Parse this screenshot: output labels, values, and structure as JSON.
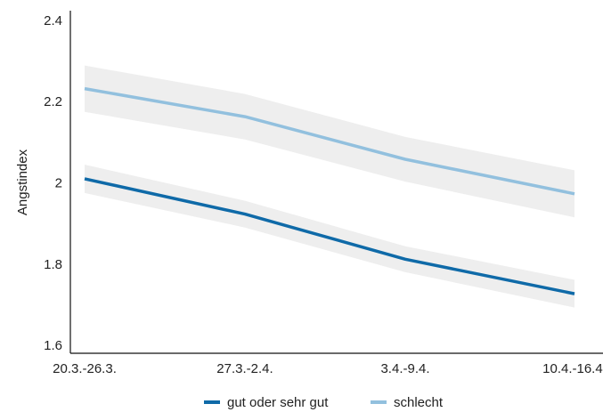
{
  "chart_data": {
    "type": "line",
    "categories": [
      "20.3.-26.3.",
      "27.3.-2.4.",
      "3.4.-9.4.",
      "10.4.-16.4."
    ],
    "ylabel": "Angstindex",
    "ylim": [
      1.58,
      2.42
    ],
    "yticks": [
      "1.6",
      "1.8",
      "2",
      "2.2",
      "2.4"
    ],
    "ytick_values": [
      1.6,
      1.8,
      2.0,
      2.2,
      2.4
    ],
    "grid": false,
    "legend_position": "bottom",
    "series": [
      {
        "name": "gut oder sehr gut",
        "color": "#0f6aa8",
        "values": [
          2.01,
          1.923,
          1.812,
          1.727
        ],
        "ci_low": [
          1.975,
          1.89,
          1.78,
          1.693
        ],
        "ci_high": [
          2.045,
          1.956,
          1.844,
          1.761
        ]
      },
      {
        "name": "schlecht",
        "color": "#92c0de",
        "values": [
          2.232,
          2.163,
          2.058,
          1.973
        ],
        "ci_low": [
          2.175,
          2.107,
          2.003,
          1.915
        ],
        "ci_high": [
          2.289,
          2.219,
          2.113,
          2.031
        ]
      }
    ],
    "band_color": "#eeeeee"
  }
}
